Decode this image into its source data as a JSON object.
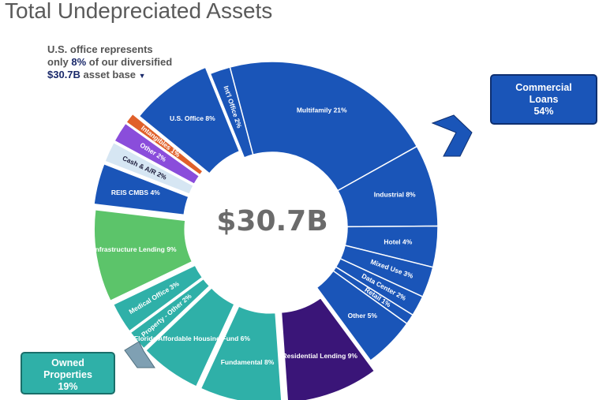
{
  "title": "Total Undepreciated Assets",
  "note": {
    "line1": "U.S. office represents",
    "line2_a": "only ",
    "line2_b": "8%",
    "line2_c": " of our diversified",
    "line3_a": "$30.7B",
    "line3_b": " asset base",
    "marker": "▼"
  },
  "center_label": "$30.7B",
  "callouts": {
    "commercial": {
      "line1": "Commercial",
      "line2": "Loans",
      "line3": "54%"
    },
    "owned": {
      "line1": "Owned",
      "line2": "Properties",
      "line3": "19%"
    }
  },
  "colors": {
    "commercial": "#1a55b8",
    "residential": "#3a1578",
    "owned_teal": "#2fb0a8",
    "infrastructure": "#5cc46a",
    "reis": "#1a55b8",
    "cash": "#d6e6f3",
    "other": "#8a4ddb",
    "intangibles": "#e0602a",
    "arrow": "#1a55b8"
  },
  "chart_data": {
    "type": "pie",
    "total": "$30.7B",
    "slices": [
      {
        "label": "Int'l Office 2%",
        "value": 2,
        "group": "Commercial Loans"
      },
      {
        "label": "Multifamily 21%",
        "value": 21,
        "group": "Commercial Loans"
      },
      {
        "label": "Industrial 8%",
        "value": 8,
        "group": "Commercial Loans"
      },
      {
        "label": "Hotel 4%",
        "value": 4,
        "group": "Commercial Loans"
      },
      {
        "label": "Mixed Use 3%",
        "value": 3,
        "group": "Commercial Loans"
      },
      {
        "label": "Data Center 2%",
        "value": 2,
        "group": "Commercial Loans"
      },
      {
        "label": "Retail 1%",
        "value": 1,
        "group": "Commercial Loans"
      },
      {
        "label": "Other 5%",
        "value": 5,
        "group": "Commercial Loans"
      },
      {
        "label": "Residential Lending 9%",
        "value": 9,
        "group": ""
      },
      {
        "label": "Fundamental 8%",
        "value": 8,
        "group": "Owned Properties"
      },
      {
        "label": "Florida Affordable Housing Fund 6%",
        "value": 6,
        "group": "Owned Properties"
      },
      {
        "label": "Property - Other 2%",
        "value": 2,
        "group": "Owned Properties"
      },
      {
        "label": "Medical Office 3%",
        "value": 3,
        "group": "Owned Properties"
      },
      {
        "label": "Infrastructure Lending 9%",
        "value": 9,
        "group": ""
      },
      {
        "label": "REIS CMBS 4%",
        "value": 4,
        "group": ""
      },
      {
        "label": "Cash & A/R 2%",
        "value": 2,
        "group": ""
      },
      {
        "label": "Other 2%",
        "value": 2,
        "group": ""
      },
      {
        "label": "Intangibles 1%",
        "value": 1,
        "group": ""
      },
      {
        "label": "U.S. Office 8%",
        "value": 8,
        "group": "Commercial Loans"
      }
    ]
  }
}
